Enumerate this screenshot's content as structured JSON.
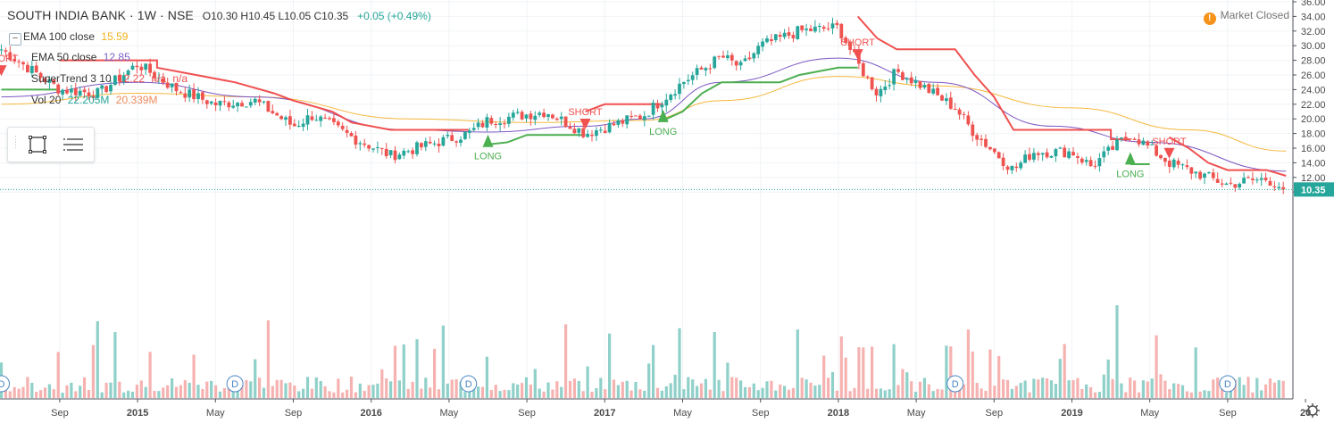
{
  "header": {
    "symbol": "SOUTH INDIA BANK · 1W · NSE",
    "ohlc": "O10.30  H10.45  L10.05  C10.35",
    "change": "+0.05 (+0.49%)"
  },
  "market_status": {
    "icon": "alert-icon",
    "icon_glyph": "!",
    "text": "Market Closed"
  },
  "indicators": [
    {
      "label": "EMA 100 close",
      "values": [
        {
          "text": "15.59",
          "color": "#f0b21e"
        }
      ]
    },
    {
      "label": "EMA 50 close",
      "values": [
        {
          "text": "12.85",
          "color": "#7b61c8"
        }
      ]
    },
    {
      "label": "SuperTrend 3 10",
      "values": [
        {
          "text": "12.22",
          "color": "#f05050"
        },
        {
          "text": "n/a",
          "color": "#f05050"
        },
        {
          "text": "n/a",
          "color": "#f05050"
        }
      ]
    },
    {
      "label": "Vol 20",
      "values": [
        {
          "text": "22.205M",
          "color": "#26a69a"
        },
        {
          "text": "20.339M",
          "color": "#ef8a5c"
        }
      ]
    }
  ],
  "collapse_icon": "minus-icon",
  "collapse_glyph": "−",
  "drawing_toolbar": {
    "rect_icon": "rectangle-tool-icon",
    "list_icon": "object-tree-icon"
  },
  "chart_data": {
    "type": "candlestick",
    "price_axis": {
      "ticks": [
        "10.00",
        "12.00",
        "14.00",
        "16.00",
        "18.00",
        "20.00",
        "22.00",
        "24.00",
        "26.00",
        "28.00",
        "30.00",
        "32.00",
        "34.00",
        "36.00"
      ],
      "ylim": [
        10,
        36
      ]
    },
    "time_axis": {
      "ticks": [
        "Sep",
        "2015",
        "May",
        "Sep",
        "2016",
        "May",
        "Sep",
        "2017",
        "May",
        "Sep",
        "2018",
        "May",
        "Sep",
        "2019",
        "May",
        "Sep",
        "20"
      ]
    },
    "last_price_label": "10.35",
    "colors": {
      "up": "#26a69a",
      "down": "#ef5350",
      "ema100": "#f5b83d",
      "ema50": "#7e57c2",
      "supertrend_up": "#4caf50",
      "supertrend_down": "#f05050",
      "vol_up": "#8fd0c9",
      "vol_down": "#f5b2b0"
    },
    "price_anchors": [
      {
        "x": "Jun 2014",
        "y": 29.5
      },
      {
        "x": "Sep 2014",
        "y": 24.0
      },
      {
        "x": "Nov 2014",
        "y": 23.5
      },
      {
        "x": "Jan 2015",
        "y": 27.5
      },
      {
        "x": "Mar 2015",
        "y": 24.0
      },
      {
        "x": "May 2015",
        "y": 22.0
      },
      {
        "x": "Jul 2015",
        "y": 22.5
      },
      {
        "x": "Sep 2015",
        "y": 19.0
      },
      {
        "x": "Oct 2015",
        "y": 20.5
      },
      {
        "x": "Dec 2015",
        "y": 17.5
      },
      {
        "x": "Feb 2016",
        "y": 15.0
      },
      {
        "x": "Apr 2016",
        "y": 16.5
      },
      {
        "x": "Jun 2016",
        "y": 18.0
      },
      {
        "x": "Jul 2016",
        "y": 19.8
      },
      {
        "x": "Oct 2016",
        "y": 21.0
      },
      {
        "x": "Dec 2016",
        "y": 18.0
      },
      {
        "x": "Mar 2017",
        "y": 20.5
      },
      {
        "x": "May 2017",
        "y": 25.0
      },
      {
        "x": "Jul 2017",
        "y": 28.5
      },
      {
        "x": "Aug 2017",
        "y": 27.0
      },
      {
        "x": "Sep 2017",
        "y": 30.0
      },
      {
        "x": "Nov 2017",
        "y": 32.0
      },
      {
        "x": "Jan 2018",
        "y": 32.5
      },
      {
        "x": "Feb 2018",
        "y": 27.5
      },
      {
        "x": "Mar 2018",
        "y": 23.5
      },
      {
        "x": "Apr 2018",
        "y": 26.5
      },
      {
        "x": "May 2018",
        "y": 25.0
      },
      {
        "x": "Jul 2018",
        "y": 21.5
      },
      {
        "x": "Aug 2018",
        "y": 18.0
      },
      {
        "x": "Oct 2018",
        "y": 13.0
      },
      {
        "x": "Nov 2018",
        "y": 15.5
      },
      {
        "x": "Jan 2019",
        "y": 15.5
      },
      {
        "x": "Feb 2019",
        "y": 13.5
      },
      {
        "x": "Apr 2019",
        "y": 18.0
      },
      {
        "x": "Jun 2019",
        "y": 14.0
      },
      {
        "x": "Jul 2019",
        "y": 13.0
      },
      {
        "x": "Sep 2019",
        "y": 11.0
      },
      {
        "x": "Oct 2019",
        "y": 11.5
      },
      {
        "x": "Nov 2019",
        "y": 11.8
      },
      {
        "x": "Dec 2019",
        "y": 10.35
      }
    ],
    "ema100_anchors": [
      {
        "x": "Jun 2014",
        "y": 22.0
      },
      {
        "x": "Jan 2015",
        "y": 23.5
      },
      {
        "x": "Jul 2015",
        "y": 23.0
      },
      {
        "x": "Mar 2016",
        "y": 20.0
      },
      {
        "x": "Sep 2016",
        "y": 19.5
      },
      {
        "x": "Mar 2017",
        "y": 19.8
      },
      {
        "x": "Jul 2017",
        "y": 22.5
      },
      {
        "x": "Jan 2018",
        "y": 25.8
      },
      {
        "x": "Jun 2018",
        "y": 24.5
      },
      {
        "x": "Jan 2019",
        "y": 21.5
      },
      {
        "x": "Jul 2019",
        "y": 18.5
      },
      {
        "x": "Dec 2019",
        "y": 15.6
      }
    ],
    "ema50_anchors": [
      {
        "x": "Jun 2014",
        "y": 23.0
      },
      {
        "x": "Jan 2015",
        "y": 25.0
      },
      {
        "x": "Jul 2015",
        "y": 23.0
      },
      {
        "x": "Mar 2016",
        "y": 18.5
      },
      {
        "x": "Jul 2016",
        "y": 18.2
      },
      {
        "x": "Dec 2016",
        "y": 19.0
      },
      {
        "x": "Mar 2017",
        "y": 20.0
      },
      {
        "x": "Jul 2017",
        "y": 25.0
      },
      {
        "x": "Jan 2018",
        "y": 28.3
      },
      {
        "x": "Jun 2018",
        "y": 25.0
      },
      {
        "x": "Dec 2018",
        "y": 19.0
      },
      {
        "x": "May 2019",
        "y": 16.8
      },
      {
        "x": "Dec 2019",
        "y": 12.85
      }
    ],
    "supertrend": [
      {
        "trend": "long",
        "points": [
          {
            "x": "Jun 2014",
            "y": 24.0
          },
          {
            "x": "Sep 2014",
            "y": 24.0
          }
        ]
      },
      {
        "trend": "short",
        "points": [
          {
            "x": "Sep 2014",
            "y": 28.0
          },
          {
            "x": "Feb 2015",
            "y": 28.0
          },
          {
            "x": "Feb 2015",
            "y": 27.0
          },
          {
            "x": "Apr 2015",
            "y": 26.0
          },
          {
            "x": "Jun 2015",
            "y": 25.0
          },
          {
            "x": "Aug 2015",
            "y": 23.5
          },
          {
            "x": "Sep 2015",
            "y": 22.5
          },
          {
            "x": "Nov 2015",
            "y": 21.0
          },
          {
            "x": "Dec 2015",
            "y": 19.5
          },
          {
            "x": "Feb 2016",
            "y": 18.5
          },
          {
            "x": "Jun 2016",
            "y": 18.5
          }
        ]
      },
      {
        "trend": "long",
        "points": [
          {
            "x": "Jul 2016",
            "y": 16.5
          },
          {
            "x": "Aug 2016",
            "y": 16.8
          },
          {
            "x": "Sep 2016",
            "y": 17.8
          },
          {
            "x": "Dec 2016",
            "y": 17.8
          }
        ]
      },
      {
        "trend": "short",
        "points": [
          {
            "x": "Dec 2016",
            "y": 21.0
          },
          {
            "x": "Jan 2017",
            "y": 22.0
          },
          {
            "x": "Apr 2017",
            "y": 22.0
          }
        ]
      },
      {
        "trend": "long",
        "points": [
          {
            "x": "Apr 2017",
            "y": 19.8
          },
          {
            "x": "May 2017",
            "y": 21.0
          },
          {
            "x": "Jun 2017",
            "y": 23.5
          },
          {
            "x": "Jul 2017",
            "y": 25.0
          },
          {
            "x": "Aug 2017",
            "y": 25.0
          },
          {
            "x": "Oct 2017",
            "y": 25.0
          },
          {
            "x": "Nov 2017",
            "y": 26.0
          },
          {
            "x": "Jan 2018",
            "y": 27.0
          },
          {
            "x": "Feb 2018",
            "y": 27.0
          }
        ]
      },
      {
        "trend": "short",
        "points": [
          {
            "x": "Feb 2018",
            "y": 34.0
          },
          {
            "x": "Mar 2018",
            "y": 31.0
          },
          {
            "x": "Apr 2018",
            "y": 29.5
          },
          {
            "x": "Jul 2018",
            "y": 29.5
          },
          {
            "x": "Aug 2018",
            "y": 26.0
          },
          {
            "x": "Sep 2018",
            "y": 23.0
          },
          {
            "x": "Oct 2018",
            "y": 18.5
          },
          {
            "x": "Mar 2019",
            "y": 18.5
          },
          {
            "x": "Mar 2019",
            "y": 17.2
          },
          {
            "x": "Apr 2019",
            "y": 17.2
          }
        ]
      },
      {
        "trend": "long",
        "points": [
          {
            "x": "Apr 2019",
            "y": 13.8
          },
          {
            "x": "May 2019",
            "y": 13.8
          }
        ]
      },
      {
        "trend": "short",
        "points": [
          {
            "x": "Jun 2019",
            "y": 17.5
          },
          {
            "x": "Jul 2019",
            "y": 16.0
          },
          {
            "x": "Aug 2019",
            "y": 14.0
          },
          {
            "x": "Sep 2019",
            "y": 13.0
          },
          {
            "x": "Nov 2019",
            "y": 13.0
          },
          {
            "x": "Dec 2019",
            "y": 12.22
          }
        ]
      }
    ],
    "signals": [
      {
        "type": "SHORT",
        "x": "Jun 2014",
        "y": 28.3
      },
      {
        "type": "LONG",
        "x": "Jul 2016",
        "y": 16.4
      },
      {
        "type": "SHORT",
        "x": "Dec 2016",
        "y": 21.0
      },
      {
        "type": "LONG",
        "x": "Apr 2017",
        "y": 19.8
      },
      {
        "type": "SHORT",
        "x": "Feb 2018",
        "y": 30.5
      },
      {
        "type": "LONG",
        "x": "Apr 2019",
        "y": 14.0
      },
      {
        "type": "SHORT",
        "x": "Jun 2019",
        "y": 17.0
      }
    ],
    "dividend_marker": "D",
    "dividend_dates": [
      "Jun 2014",
      "Jun 2015",
      "Jun 2016",
      "Jul 2018",
      "Sep 2019"
    ]
  }
}
